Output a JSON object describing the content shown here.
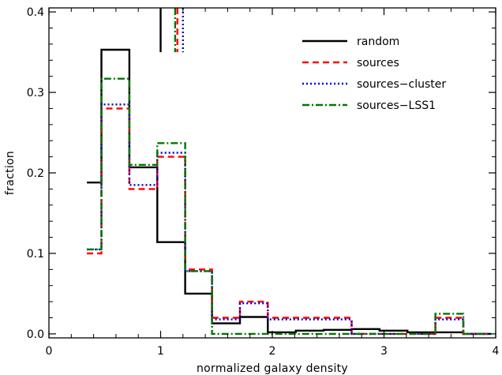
{
  "chart_data": {
    "type": "line",
    "subtype": "step-histogram",
    "xlabel": "normalized galaxy density",
    "ylabel": "fraction",
    "xlim": [
      0,
      4
    ],
    "ylim": [
      -0.005,
      0.405
    ],
    "xticks": [
      0,
      1,
      2,
      3,
      4
    ],
    "yticks": [
      0.0,
      0.1,
      0.2,
      0.3,
      0.4
    ],
    "xtick_labels": [
      "0",
      "1",
      "2",
      "3",
      "4"
    ],
    "ytick_labels": [
      "0.0",
      "0.1",
      "0.2",
      "0.3",
      "0.4"
    ],
    "grid": false,
    "legend_position": "top-right",
    "bin_edges": [
      0.34,
      0.47,
      0.72,
      0.97,
      1.22,
      1.46,
      1.71,
      1.96,
      2.21,
      2.46,
      2.71,
      2.96,
      3.21,
      3.46,
      3.71,
      3.96
    ],
    "series": [
      {
        "name": "random",
        "color": "#000000",
        "dash": "",
        "values": [
          0.188,
          0.353,
          0.207,
          0.114,
          0.05,
          0.013,
          0.021,
          0.002,
          0.004,
          0.005,
          0.006,
          0.004,
          0.002,
          0.002,
          0.0
        ],
        "mean_x": 1.0
      },
      {
        "name": "sources",
        "color": "#ff0000",
        "dash": "8,5",
        "values": [
          0.1,
          0.28,
          0.18,
          0.22,
          0.08,
          0.02,
          0.04,
          0.02,
          0.02,
          0.02,
          0.0,
          0.0,
          0.0,
          0.02,
          0.0
        ],
        "mean_x": 1.15
      },
      {
        "name": "sources−cluster",
        "color": "#0000cc",
        "dash": "2,3",
        "values": [
          0.105,
          0.285,
          0.185,
          0.225,
          0.078,
          0.018,
          0.038,
          0.018,
          0.018,
          0.018,
          0.0,
          0.0,
          0.0,
          0.018,
          0.0
        ],
        "mean_x": 1.2
      },
      {
        "name": "sources−LSS1",
        "color": "#007700",
        "dash": "9,3,2,3",
        "values": [
          0.105,
          0.317,
          0.21,
          0.237,
          0.078,
          0.0,
          0.0,
          0.0,
          0.0,
          0.0,
          0.0,
          0.0,
          0.0,
          0.025,
          0.0
        ],
        "mean_x": 1.13
      }
    ]
  }
}
